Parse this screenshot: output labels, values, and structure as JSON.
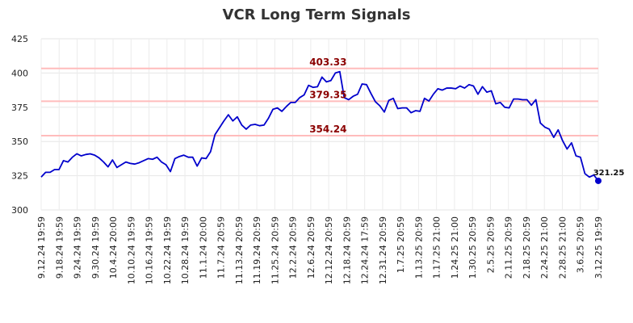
{
  "chart_data": {
    "type": "line",
    "title": "VCR Long Term Signals",
    "xlabel": "",
    "ylabel": "",
    "ylim": [
      300,
      425
    ],
    "y_ticks": [
      300,
      325,
      350,
      375,
      400,
      425
    ],
    "grid": true,
    "x_tick_labels": [
      "9.12.24 19:59",
      "9.18.24 19:59",
      "9.24.24 19:59",
      "9.30.24 19:59",
      "10.4.24 20:00",
      "10.10.24 19:59",
      "10.16.24 19:59",
      "10.22.24 19:59",
      "10.28.24 19:59",
      "11.1.24 20:00",
      "11.7.24 20:59",
      "11.13.24 20:59",
      "11.19.24 20:59",
      "11.25.24 20:59",
      "12.2.24 20:59",
      "12.6.24 20:59",
      "12.12.24 20:59",
      "12.18.24 20:59",
      "12.24.24 17:59",
      "12.31.24 20:59",
      "1.7.25 20:59",
      "1.13.25 20:59",
      "1.17.25 21:00",
      "1.24.25 21:00",
      "1.30.25 20:59",
      "2.5.25 20:59",
      "2.11.25 20:59",
      "2.18.25 20:59",
      "2.24.25 21:00",
      "2.28.25 21:00",
      "3.6.25 20:59",
      "3.12.25 19:59"
    ],
    "signals": [
      {
        "value": 403.33,
        "label": "403.33"
      },
      {
        "value": 379.35,
        "label": "379.35"
      },
      {
        "value": 354.24,
        "label": "354.24"
      }
    ],
    "series": [
      {
        "color": "#0000cc",
        "values": [
          324,
          327.5,
          327.5,
          329.5,
          329.5,
          336,
          335,
          338.5,
          341,
          339.5,
          340.5,
          341,
          340,
          338,
          335,
          331.5,
          336.5,
          331,
          333,
          335,
          334,
          333.5,
          334.5,
          336,
          337.5,
          337,
          338.5,
          335,
          333,
          328,
          337.5,
          339,
          340,
          338.5,
          338.5,
          332,
          338,
          337.5,
          342.5,
          355,
          360,
          365,
          369.5,
          365,
          368,
          362,
          359,
          362,
          362.5,
          361.5,
          362,
          367,
          373.5,
          374.5,
          372,
          375.5,
          378.5,
          378.5,
          382,
          384,
          391,
          389.5,
          390,
          397,
          393.5,
          394.5,
          400,
          401,
          382,
          380.5,
          383,
          384.5,
          392,
          391.5,
          385,
          379,
          376,
          371.5,
          380,
          381.5,
          374,
          374.5,
          374.5,
          371,
          372.5,
          372,
          381.5,
          379.5,
          384.5,
          388.5,
          387.5,
          389,
          389,
          388.5,
          390.5,
          389,
          391.5,
          390.5,
          384.5,
          390,
          386,
          387,
          377.5,
          378.5,
          375,
          374.5,
          381,
          381,
          380.5,
          380.5,
          376.5,
          380.5,
          363.5,
          360.5,
          359,
          353,
          358.5,
          350.5,
          344.5,
          349,
          339.5,
          338.5,
          326.5,
          324,
          325.5,
          321.25
        ]
      }
    ],
    "last_label": "321.25"
  }
}
